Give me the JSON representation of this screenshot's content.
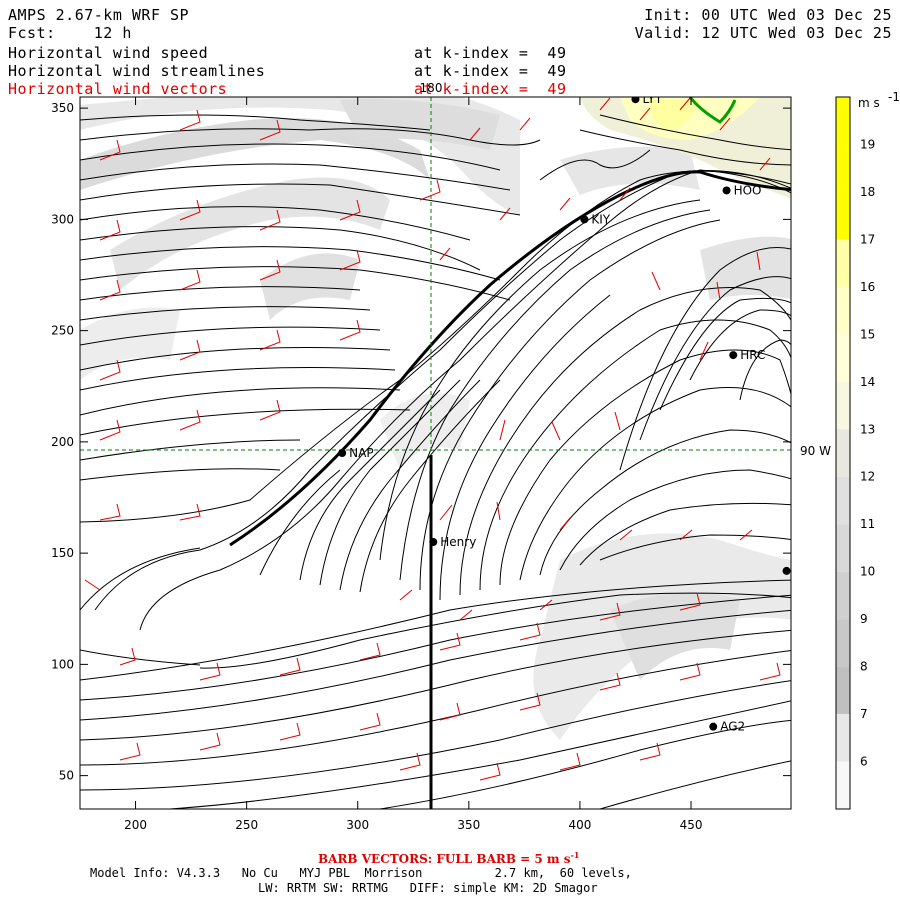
{
  "header": {
    "model_title": "AMPS 2.67-km WRF SP",
    "forecast": "Fcst:    12 h",
    "init": "Init: 00 UTC Wed 03 Dec 25",
    "valid": "Valid: 12 UTC Wed 03 Dec 25",
    "fields": [
      {
        "label": "Horizontal wind speed",
        "level": "at k-index =  49",
        "color": "#000000"
      },
      {
        "label": "Horizontal wind streamlines",
        "level": "at k-index =  49",
        "color": "#000000"
      },
      {
        "label": "Horizontal wind vectors",
        "level": "at k-index =  49",
        "color": "#e00000"
      }
    ]
  },
  "map": {
    "x_ticks": [
      "200",
      "250",
      "300",
      "350",
      "400",
      "450"
    ],
    "y_ticks": [
      "350",
      "300",
      "250",
      "200",
      "150",
      "100",
      "50"
    ],
    "x_range": [
      175,
      495
    ],
    "y_range": [
      35,
      355
    ],
    "meridian_label": "180",
    "parallel_label": "90 W",
    "stations": [
      {
        "name": "LYT",
        "x": 425,
        "y": 354
      },
      {
        "name": "HOO",
        "x": 466,
        "y": 313
      },
      {
        "name": "KIY",
        "x": 402,
        "y": 300
      },
      {
        "name": "HRC",
        "x": 469,
        "y": 239
      },
      {
        "name": "NAP",
        "x": 293,
        "y": 195
      },
      {
        "name": "Henry",
        "x": 334,
        "y": 155
      },
      {
        "name": "AG2",
        "x": 460,
        "y": 72
      },
      {
        "name": "",
        "x": 493,
        "y": 142
      }
    ]
  },
  "colorbar": {
    "unit_label": "m s",
    "unit_exp": "-1",
    "levels": [
      "19",
      "18",
      "17",
      "16",
      "15",
      "14",
      "13",
      "12",
      "11",
      "10",
      "9",
      "8",
      "7",
      "6"
    ],
    "colors": [
      "#ffff00",
      "#ffff00",
      "#ffffa8",
      "#ffffc8",
      "#ffffd8",
      "#f8f8e0",
      "#e8e8e0",
      "#e0e0e0",
      "#d8d8d8",
      "#d0d0d0",
      "#c8c8c8",
      "#c0c0c0",
      "#e8e8e8",
      "#f8f8f8"
    ]
  },
  "footer": {
    "barb_note": "BARB VECTORS:  FULL BARB = 5 m s",
    "barb_exp": "-1",
    "model_info": "Model Info: V4.3.3   No Cu   MYJ PBL  Morrison          2.7 km,  60 levels,",
    "physics": "LW: RRTM SW: RRTMG   DIFF: simple KM: 2D Smagor"
  }
}
